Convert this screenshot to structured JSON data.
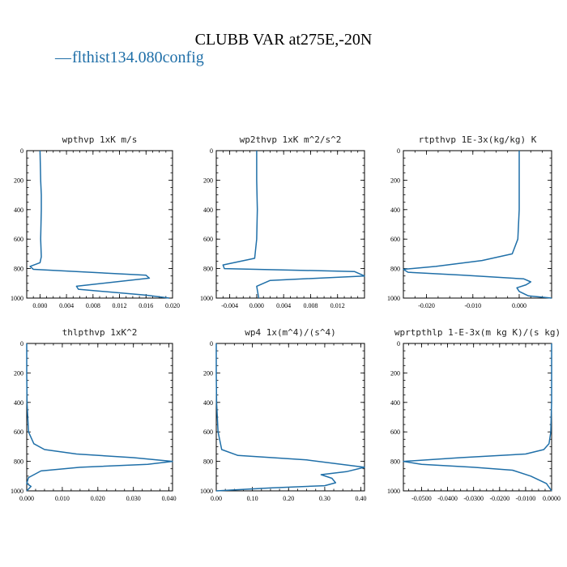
{
  "figure": {
    "title": "CLUBB VAR at275E,-20N",
    "legend": {
      "dash": "—",
      "label": "flthist134.080config",
      "color": "#1f6fa8"
    }
  },
  "chart_data": [
    {
      "type": "line",
      "title": "wpthvp   1xK m/s",
      "xlim": [
        -0.002,
        0.02
      ],
      "ylim": [
        1000,
        0
      ],
      "xticks": [
        0.0,
        0.004,
        0.008,
        0.012,
        0.016,
        0.02
      ],
      "xtick_labels": [
        "0.000",
        "0.004",
        "0.008",
        "0.012",
        "0.016",
        "0.020"
      ],
      "yticks": [
        0,
        200,
        400,
        600,
        800,
        1000
      ],
      "series": [
        {
          "color": "#1f6fa8",
          "x": [
            0.0,
            0.0001,
            0.0002,
            0.0002,
            0.0001,
            0.0002,
            0.0,
            -0.0015,
            -0.001,
            0.016,
            0.0165,
            0.0055,
            0.0058,
            0.016,
            0.0195
          ],
          "y": [
            0,
            200,
            300,
            400,
            600,
            720,
            760,
            785,
            805,
            845,
            865,
            920,
            940,
            980,
            1000
          ]
        }
      ]
    },
    {
      "type": "line",
      "title": "wp2thvp   1xK m^2/s^2",
      "xlim": [
        -0.006,
        0.016
      ],
      "ylim": [
        1000,
        0
      ],
      "xticks": [
        -0.004,
        0.0,
        0.004,
        0.008,
        0.012
      ],
      "xtick_labels": [
        "-0.004",
        "0.000",
        "0.004",
        "0.008",
        "0.012"
      ],
      "yticks": [
        0,
        200,
        400,
        600,
        800,
        1000
      ],
      "series": [
        {
          "color": "#1f6fa8",
          "x": [
            0.0,
            0.0,
            0.0001,
            0.0,
            -0.0003,
            -0.005,
            -0.0048,
            0.0145,
            0.016,
            0.002,
            0.0,
            0.0003
          ],
          "y": [
            0,
            200,
            400,
            600,
            730,
            775,
            800,
            820,
            850,
            880,
            920,
            1000
          ]
        }
      ]
    },
    {
      "type": "line",
      "title": "rtpthvp   1E-3x(kg/kg) K",
      "xlim": [
        -0.025,
        0.007
      ],
      "ylim": [
        1000,
        0
      ],
      "xticks": [
        -0.02,
        -0.01,
        0.0
      ],
      "xtick_labels": [
        "-0.020",
        "-0.010",
        "0.000"
      ],
      "yticks": [
        0,
        200,
        400,
        600,
        800,
        1000
      ],
      "series": [
        {
          "color": "#1f6fa8",
          "x": [
            0.0,
            0.0,
            0.0,
            -0.0003,
            -0.0015,
            -0.008,
            -0.018,
            -0.025,
            -0.024,
            -0.012,
            0.001,
            0.0025,
            0.0015,
            -0.0005,
            0.0,
            0.002,
            0.007
          ],
          "y": [
            0,
            200,
            400,
            600,
            700,
            745,
            785,
            805,
            825,
            845,
            870,
            890,
            910,
            930,
            955,
            985,
            1000
          ]
        }
      ]
    },
    {
      "type": "line",
      "title": "thlpthvp   1xK^2",
      "xlim": [
        0,
        0.041
      ],
      "ylim": [
        1000,
        0
      ],
      "xticks": [
        0.0,
        0.01,
        0.02,
        0.03,
        0.04
      ],
      "xtick_labels": [
        "0.000",
        "0.010",
        "0.020",
        "0.030",
        "0.040"
      ],
      "yticks": [
        0,
        200,
        400,
        600,
        800,
        1000
      ],
      "series": [
        {
          "color": "#1f6fa8",
          "x": [
            0.0,
            0.0,
            0.0001,
            0.0005,
            0.002,
            0.005,
            0.014,
            0.03,
            0.041,
            0.034,
            0.015,
            0.004,
            0.0005,
            0.0,
            0.0012,
            0.0
          ],
          "y": [
            0,
            200,
            400,
            600,
            680,
            720,
            750,
            775,
            800,
            820,
            840,
            865,
            910,
            950,
            970,
            1000
          ]
        }
      ]
    },
    {
      "type": "line",
      "title": "wp4   1x(m^4)/(s^4)",
      "xlim": [
        0,
        0.41
      ],
      "ylim": [
        1000,
        0
      ],
      "xticks": [
        0.0,
        0.1,
        0.2,
        0.3,
        0.4
      ],
      "xtick_labels": [
        "0.00",
        "0.10",
        "0.20",
        "0.30",
        "0.40"
      ],
      "yticks": [
        0,
        200,
        400,
        600,
        800,
        1000
      ],
      "series": [
        {
          "color": "#1f6fa8",
          "x": [
            0.0,
            0.0,
            0.001,
            0.005,
            0.015,
            0.06,
            0.25,
            0.41,
            0.36,
            0.29,
            0.32,
            0.33,
            0.3,
            0.15,
            0.0
          ],
          "y": [
            0,
            200,
            400,
            600,
            720,
            760,
            790,
            840,
            870,
            890,
            915,
            945,
            965,
            980,
            1000
          ]
        }
      ]
    },
    {
      "type": "line",
      "title": "wprtpthlp   1-E-3x(m kg K)/(s kg)",
      "xlim": [
        -0.057,
        0.0
      ],
      "ylim": [
        1000,
        0
      ],
      "xticks": [
        -0.05,
        -0.04,
        -0.03,
        -0.02,
        -0.01,
        0.0
      ],
      "xtick_labels": [
        "-0.0500",
        "-0.0400",
        "-0.0300",
        "-0.0200",
        "-0.0100",
        "0.0000"
      ],
      "yticks": [
        0,
        200,
        400,
        600,
        800,
        1000
      ],
      "series": [
        {
          "color": "#1f6fa8",
          "x": [
            0.0,
            0.0,
            0.0,
            -0.0003,
            -0.001,
            -0.003,
            -0.01,
            -0.035,
            -0.057,
            -0.05,
            -0.03,
            -0.015,
            -0.008,
            -0.002,
            0.0
          ],
          "y": [
            0,
            200,
            400,
            600,
            680,
            720,
            750,
            775,
            800,
            820,
            840,
            860,
            900,
            950,
            1000
          ]
        }
      ]
    }
  ]
}
